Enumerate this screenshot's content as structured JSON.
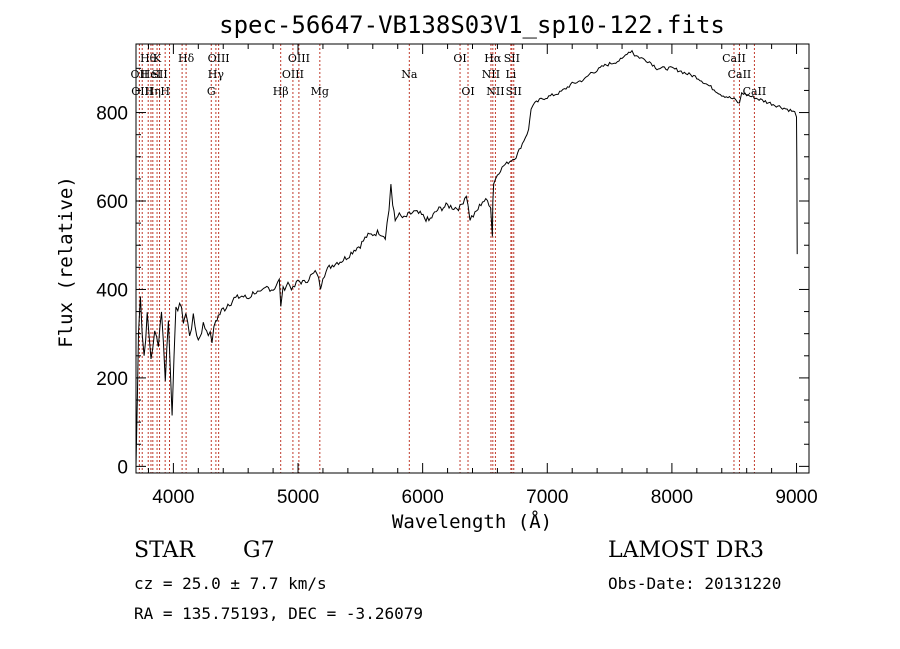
{
  "chart_data": {
    "type": "line",
    "title": "spec-56647-VB138S03V1_sp10-122.fits",
    "xlabel": "Wavelength (Å)",
    "ylabel": "Flux (relative)",
    "xlim": [
      3700,
      9100
    ],
    "ylim": [
      -15,
      955
    ],
    "xticks": [
      4000,
      5000,
      6000,
      7000,
      8000,
      9000
    ],
    "yticks": [
      0,
      200,
      400,
      600,
      800
    ],
    "series": [
      {
        "name": "flux",
        "x": [
          3700,
          3712,
          3720,
          3735,
          3750,
          3765,
          3790,
          3820,
          3850,
          3880,
          3905,
          3935,
          3960,
          3990,
          4020,
          4050,
          4080,
          4100,
          4130,
          4160,
          4200,
          4240,
          4280,
          4310,
          4340,
          4360,
          4400,
          4450,
          4500,
          4550,
          4600,
          4650,
          4700,
          4750,
          4800,
          4850,
          4862,
          4880,
          4920,
          4960,
          5000,
          5050,
          5100,
          5150,
          5180,
          5200,
          5250,
          5300,
          5350,
          5400,
          5450,
          5500,
          5550,
          5600,
          5650,
          5700,
          5730,
          5745,
          5760,
          5780,
          5800,
          5850,
          5893,
          5930,
          5980,
          6050,
          6120,
          6200,
          6250,
          6300,
          6350,
          6380,
          6420,
          6480,
          6520,
          6545,
          6560,
          6563,
          6570,
          6600,
          6650,
          6700,
          6750,
          6800,
          6850,
          6870,
          6900,
          6950,
          7000,
          7050,
          7100,
          7150,
          7200,
          7250,
          7300,
          7350,
          7400,
          7450,
          7500,
          7550,
          7600,
          7640,
          7680,
          7700,
          7740,
          7780,
          7820,
          7880,
          7940,
          8000,
          8060,
          8100,
          8150,
          8200,
          8250,
          8300,
          8350,
          8400,
          8450,
          8500,
          8542,
          8560,
          8600,
          8650,
          8700,
          8750,
          8800,
          8850,
          8900,
          8950,
          8985,
          9000,
          9002,
          9005
        ],
        "values": [
          0,
          170,
          310,
          390,
          300,
          250,
          340,
          245,
          300,
          280,
          355,
          200,
          330,
          125,
          350,
          370,
          330,
          345,
          300,
          335,
          285,
          320,
          305,
          285,
          330,
          340,
          355,
          372,
          380,
          385,
          380,
          395,
          390,
          405,
          400,
          420,
          365,
          400,
          415,
          400,
          420,
          415,
          430,
          440,
          405,
          430,
          450,
          460,
          465,
          475,
          490,
          500,
          520,
          525,
          530,
          520,
          580,
          640,
          590,
          555,
          570,
          560,
          570,
          575,
          570,
          555,
          580,
          590,
          585,
          585,
          615,
          560,
          570,
          600,
          600,
          590,
          520,
          600,
          640,
          660,
          680,
          690,
          700,
          730,
          760,
          810,
          820,
          830,
          835,
          840,
          845,
          855,
          865,
          870,
          875,
          890,
          895,
          905,
          910,
          915,
          920,
          935,
          940,
          930,
          925,
          920,
          915,
          900,
          900,
          900,
          895,
          890,
          885,
          880,
          870,
          860,
          850,
          840,
          835,
          830,
          820,
          845,
          840,
          835,
          830,
          825,
          820,
          815,
          810,
          805,
          800,
          790,
          700,
          480
        ]
      }
    ],
    "lines": [
      {
        "x": 3727,
        "label": "OII",
        "row": 2
      },
      {
        "x": 3750,
        "label": "OIII",
        "row": 3
      },
      {
        "x": 3798,
        "label": "Hθ",
        "row": 1
      },
      {
        "x": 3820,
        "label": "HeI",
        "row": 2
      },
      {
        "x": 3835,
        "label": "Hη",
        "row": 3
      },
      {
        "x": 3869,
        "label": "K",
        "row": 1
      },
      {
        "x": 3889,
        "label": "SII",
        "row": 2
      },
      {
        "x": 3934,
        "label": "H",
        "row": 3
      },
      {
        "x": 3969,
        "label": "",
        "row": 0
      },
      {
        "x": 4070,
        "label": "",
        "row": 0
      },
      {
        "x": 4102,
        "label": "Hδ",
        "row": 1
      },
      {
        "x": 4304,
        "label": "G",
        "row": 3
      },
      {
        "x": 4341,
        "label": "Hγ",
        "row": 2
      },
      {
        "x": 4363,
        "label": "OIII",
        "row": 1
      },
      {
        "x": 4861,
        "label": "Hβ",
        "row": 3
      },
      {
        "x": 4959,
        "label": "OIII",
        "row": 2
      },
      {
        "x": 5007,
        "label": "OIII",
        "row": 1
      },
      {
        "x": 5175,
        "label": "Mg",
        "row": 3
      },
      {
        "x": 5893,
        "label": "Na",
        "row": 2
      },
      {
        "x": 6300,
        "label": "OI",
        "row": 1
      },
      {
        "x": 6364,
        "label": "OI",
        "row": 3
      },
      {
        "x": 6548,
        "label": "NII",
        "row": 2
      },
      {
        "x": 6563,
        "label": "Hα",
        "row": 1
      },
      {
        "x": 6584,
        "label": "NII",
        "row": 3
      },
      {
        "x": 6708,
        "label": "Li",
        "row": 2
      },
      {
        "x": 6716,
        "label": "SII",
        "row": 1
      },
      {
        "x": 6731,
        "label": "SII",
        "row": 3
      },
      {
        "x": 8498,
        "label": "CaII",
        "row": 1
      },
      {
        "x": 8542,
        "label": "CaII",
        "row": 2
      },
      {
        "x": 8662,
        "label": "CaII",
        "row": 3
      }
    ]
  },
  "info": {
    "object_class": "STAR",
    "subclass": "G7",
    "survey": "LAMOST DR3",
    "cz": "cz = 25.0 ± 7.7 km/s",
    "obs_date": "Obs-Date: 20131220",
    "coords": "RA = 135.75193, DEC =  -3.26079"
  },
  "colors": {
    "spectrum": "#000000",
    "line_markers": "#c0392b",
    "axis": "#000000"
  }
}
